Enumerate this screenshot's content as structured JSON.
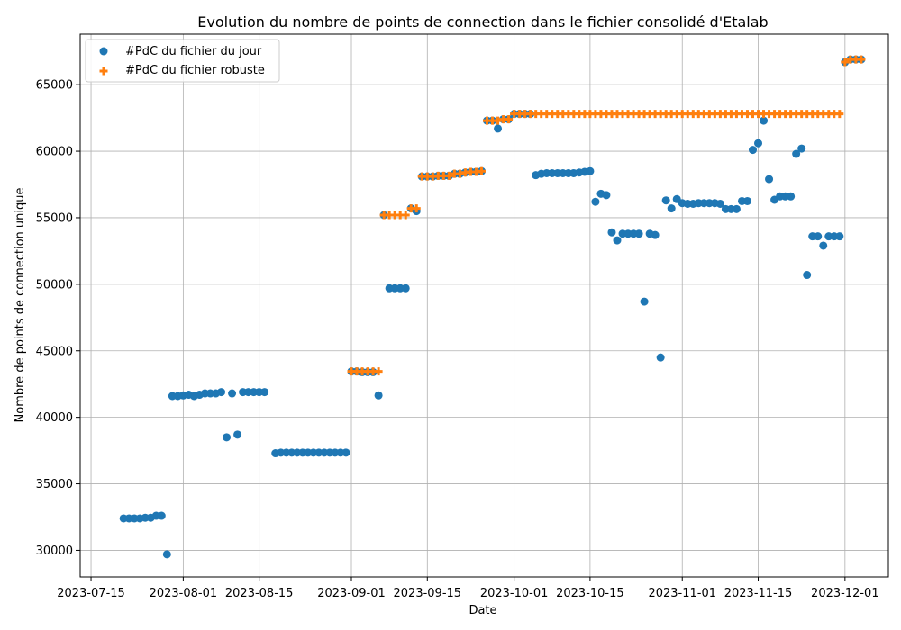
{
  "chart_data": {
    "type": "scatter",
    "title": "Evolution du nombre de points de connection dans le fichier consolidé d'Etalab",
    "xlabel": "Date",
    "ylabel": "Nombre de points de connection unique",
    "x_axis_type": "date",
    "xlim": [
      "2023-07-13",
      "2023-12-09"
    ],
    "ylim": [
      28000,
      68800
    ],
    "xticks": [
      "2023-07-15",
      "2023-08-01",
      "2023-08-15",
      "2023-09-01",
      "2023-09-15",
      "2023-10-01",
      "2023-10-15",
      "2023-11-01",
      "2023-11-15",
      "2023-12-01"
    ],
    "yticks": [
      30000,
      35000,
      40000,
      45000,
      50000,
      55000,
      60000,
      65000
    ],
    "grid": true,
    "legend_position": "top-left",
    "series": [
      {
        "name": "#PdC du fichier du jour",
        "marker": "circle",
        "color": "#1f77b4",
        "points": [
          [
            "2023-07-21",
            32400
          ],
          [
            "2023-07-22",
            32400
          ],
          [
            "2023-07-23",
            32400
          ],
          [
            "2023-07-24",
            32400
          ],
          [
            "2023-07-25",
            32450
          ],
          [
            "2023-07-26",
            32450
          ],
          [
            "2023-07-27",
            32600
          ],
          [
            "2023-07-28",
            32600
          ],
          [
            "2023-07-29",
            29700
          ],
          [
            "2023-07-30",
            41600
          ],
          [
            "2023-07-31",
            41600
          ],
          [
            "2023-08-01",
            41650
          ],
          [
            "2023-08-02",
            41700
          ],
          [
            "2023-08-03",
            41600
          ],
          [
            "2023-08-04",
            41700
          ],
          [
            "2023-08-05",
            41800
          ],
          [
            "2023-08-06",
            41800
          ],
          [
            "2023-08-07",
            41800
          ],
          [
            "2023-08-08",
            41900
          ],
          [
            "2023-08-09",
            38500
          ],
          [
            "2023-08-10",
            41800
          ],
          [
            "2023-08-11",
            38700
          ],
          [
            "2023-08-12",
            41900
          ],
          [
            "2023-08-13",
            41900
          ],
          [
            "2023-08-14",
            41900
          ],
          [
            "2023-08-15",
            41900
          ],
          [
            "2023-08-16",
            41900
          ],
          [
            "2023-08-18",
            37300
          ],
          [
            "2023-08-19",
            37350
          ],
          [
            "2023-08-20",
            37350
          ],
          [
            "2023-08-21",
            37350
          ],
          [
            "2023-08-22",
            37350
          ],
          [
            "2023-08-23",
            37350
          ],
          [
            "2023-08-24",
            37350
          ],
          [
            "2023-08-25",
            37350
          ],
          [
            "2023-08-26",
            37350
          ],
          [
            "2023-08-27",
            37350
          ],
          [
            "2023-08-28",
            37350
          ],
          [
            "2023-08-29",
            37350
          ],
          [
            "2023-08-30",
            37350
          ],
          [
            "2023-08-31",
            37350
          ],
          [
            "2023-09-01",
            43450
          ],
          [
            "2023-09-02",
            43450
          ],
          [
            "2023-09-03",
            43400
          ],
          [
            "2023-09-04",
            43400
          ],
          [
            "2023-09-05",
            43400
          ],
          [
            "2023-09-06",
            41650
          ],
          [
            "2023-09-07",
            55200
          ],
          [
            "2023-09-08",
            49700
          ],
          [
            "2023-09-09",
            49700
          ],
          [
            "2023-09-10",
            49700
          ],
          [
            "2023-09-11",
            49700
          ],
          [
            "2023-09-12",
            55700
          ],
          [
            "2023-09-13",
            55500
          ],
          [
            "2023-09-14",
            58100
          ],
          [
            "2023-09-15",
            58100
          ],
          [
            "2023-09-16",
            58100
          ],
          [
            "2023-09-17",
            58150
          ],
          [
            "2023-09-18",
            58150
          ],
          [
            "2023-09-19",
            58150
          ],
          [
            "2023-09-20",
            58300
          ],
          [
            "2023-09-21",
            58300
          ],
          [
            "2023-09-22",
            58400
          ],
          [
            "2023-09-23",
            58450
          ],
          [
            "2023-09-24",
            58450
          ],
          [
            "2023-09-25",
            58500
          ],
          [
            "2023-09-26",
            62300
          ],
          [
            "2023-09-27",
            62300
          ],
          [
            "2023-09-28",
            61700
          ],
          [
            "2023-09-29",
            62400
          ],
          [
            "2023-09-30",
            62400
          ],
          [
            "2023-10-01",
            62800
          ],
          [
            "2023-10-02",
            62800
          ],
          [
            "2023-10-03",
            62800
          ],
          [
            "2023-10-04",
            62800
          ],
          [
            "2023-10-05",
            58200
          ],
          [
            "2023-10-06",
            58300
          ],
          [
            "2023-10-07",
            58350
          ],
          [
            "2023-10-08",
            58350
          ],
          [
            "2023-10-09",
            58350
          ],
          [
            "2023-10-10",
            58350
          ],
          [
            "2023-10-11",
            58350
          ],
          [
            "2023-10-12",
            58350
          ],
          [
            "2023-10-13",
            58400
          ],
          [
            "2023-10-14",
            58450
          ],
          [
            "2023-10-15",
            58500
          ],
          [
            "2023-10-16",
            56200
          ],
          [
            "2023-10-17",
            56800
          ],
          [
            "2023-10-18",
            56700
          ],
          [
            "2023-10-19",
            53900
          ],
          [
            "2023-10-20",
            53300
          ],
          [
            "2023-10-21",
            53800
          ],
          [
            "2023-10-22",
            53800
          ],
          [
            "2023-10-23",
            53800
          ],
          [
            "2023-10-24",
            53800
          ],
          [
            "2023-10-25",
            48700
          ],
          [
            "2023-10-26",
            53800
          ],
          [
            "2023-10-27",
            53700
          ],
          [
            "2023-10-28",
            44500
          ],
          [
            "2023-10-29",
            56300
          ],
          [
            "2023-10-30",
            55700
          ],
          [
            "2023-10-31",
            56400
          ],
          [
            "2023-11-01",
            56100
          ],
          [
            "2023-11-02",
            56050
          ],
          [
            "2023-11-03",
            56050
          ],
          [
            "2023-11-04",
            56100
          ],
          [
            "2023-11-05",
            56100
          ],
          [
            "2023-11-06",
            56100
          ],
          [
            "2023-11-07",
            56100
          ],
          [
            "2023-11-08",
            56050
          ],
          [
            "2023-11-09",
            55650
          ],
          [
            "2023-11-10",
            55650
          ],
          [
            "2023-11-11",
            55650
          ],
          [
            "2023-11-12",
            56250
          ],
          [
            "2023-11-13",
            56250
          ],
          [
            "2023-11-14",
            60100
          ],
          [
            "2023-11-15",
            60600
          ],
          [
            "2023-11-16",
            62300
          ],
          [
            "2023-11-17",
            57900
          ],
          [
            "2023-11-18",
            56350
          ],
          [
            "2023-11-19",
            56600
          ],
          [
            "2023-11-20",
            56600
          ],
          [
            "2023-11-21",
            56600
          ],
          [
            "2023-11-22",
            59800
          ],
          [
            "2023-11-23",
            60200
          ],
          [
            "2023-11-24",
            50700
          ],
          [
            "2023-11-25",
            53600
          ],
          [
            "2023-11-26",
            53600
          ],
          [
            "2023-11-27",
            52900
          ],
          [
            "2023-11-28",
            53600
          ],
          [
            "2023-11-29",
            53600
          ],
          [
            "2023-11-30",
            53600
          ],
          [
            "2023-12-01",
            66700
          ],
          [
            "2023-12-02",
            66900
          ],
          [
            "2023-12-03",
            66900
          ],
          [
            "2023-12-04",
            66900
          ]
        ]
      },
      {
        "name": "#PdC du fichier robuste",
        "marker": "plus",
        "color": "#ff7f0e",
        "points": [
          [
            "2023-09-01",
            43450
          ],
          [
            "2023-09-02",
            43450
          ],
          [
            "2023-09-03",
            43450
          ],
          [
            "2023-09-04",
            43450
          ],
          [
            "2023-09-05",
            43450
          ],
          [
            "2023-09-06",
            43450
          ],
          [
            "2023-09-07",
            55200
          ],
          [
            "2023-09-08",
            55200
          ],
          [
            "2023-09-09",
            55200
          ],
          [
            "2023-09-10",
            55200
          ],
          [
            "2023-09-11",
            55200
          ],
          [
            "2023-09-12",
            55700
          ],
          [
            "2023-09-13",
            55700
          ],
          [
            "2023-09-14",
            58100
          ],
          [
            "2023-09-15",
            58100
          ],
          [
            "2023-09-16",
            58100
          ],
          [
            "2023-09-17",
            58150
          ],
          [
            "2023-09-18",
            58150
          ],
          [
            "2023-09-19",
            58150
          ],
          [
            "2023-09-20",
            58300
          ],
          [
            "2023-09-21",
            58300
          ],
          [
            "2023-09-22",
            58400
          ],
          [
            "2023-09-23",
            58450
          ],
          [
            "2023-09-24",
            58450
          ],
          [
            "2023-09-25",
            58500
          ],
          [
            "2023-09-26",
            62300
          ],
          [
            "2023-09-27",
            62300
          ],
          [
            "2023-09-28",
            62300
          ],
          [
            "2023-09-29",
            62400
          ],
          [
            "2023-09-30",
            62400
          ],
          [
            "2023-10-01",
            62800
          ],
          [
            "2023-10-02",
            62800
          ],
          [
            "2023-10-03",
            62800
          ],
          [
            "2023-10-04",
            62800
          ],
          [
            "2023-10-05",
            62800
          ],
          [
            "2023-10-06",
            62800
          ],
          [
            "2023-10-07",
            62800
          ],
          [
            "2023-10-08",
            62800
          ],
          [
            "2023-10-09",
            62800
          ],
          [
            "2023-10-10",
            62800
          ],
          [
            "2023-10-11",
            62800
          ],
          [
            "2023-10-12",
            62800
          ],
          [
            "2023-10-13",
            62800
          ],
          [
            "2023-10-14",
            62800
          ],
          [
            "2023-10-15",
            62800
          ],
          [
            "2023-10-16",
            62800
          ],
          [
            "2023-10-17",
            62800
          ],
          [
            "2023-10-18",
            62800
          ],
          [
            "2023-10-19",
            62800
          ],
          [
            "2023-10-20",
            62800
          ],
          [
            "2023-10-21",
            62800
          ],
          [
            "2023-10-22",
            62800
          ],
          [
            "2023-10-23",
            62800
          ],
          [
            "2023-10-24",
            62800
          ],
          [
            "2023-10-25",
            62800
          ],
          [
            "2023-10-26",
            62800
          ],
          [
            "2023-10-27",
            62800
          ],
          [
            "2023-10-28",
            62800
          ],
          [
            "2023-10-29",
            62800
          ],
          [
            "2023-10-30",
            62800
          ],
          [
            "2023-10-31",
            62800
          ],
          [
            "2023-11-01",
            62800
          ],
          [
            "2023-11-02",
            62800
          ],
          [
            "2023-11-03",
            62800
          ],
          [
            "2023-11-04",
            62800
          ],
          [
            "2023-11-05",
            62800
          ],
          [
            "2023-11-06",
            62800
          ],
          [
            "2023-11-07",
            62800
          ],
          [
            "2023-11-08",
            62800
          ],
          [
            "2023-11-09",
            62800
          ],
          [
            "2023-11-10",
            62800
          ],
          [
            "2023-11-11",
            62800
          ],
          [
            "2023-11-12",
            62800
          ],
          [
            "2023-11-13",
            62800
          ],
          [
            "2023-11-14",
            62800
          ],
          [
            "2023-11-15",
            62800
          ],
          [
            "2023-11-16",
            62800
          ],
          [
            "2023-11-17",
            62800
          ],
          [
            "2023-11-18",
            62800
          ],
          [
            "2023-11-19",
            62800
          ],
          [
            "2023-11-20",
            62800
          ],
          [
            "2023-11-21",
            62800
          ],
          [
            "2023-11-22",
            62800
          ],
          [
            "2023-11-23",
            62800
          ],
          [
            "2023-11-24",
            62800
          ],
          [
            "2023-11-25",
            62800
          ],
          [
            "2023-11-26",
            62800
          ],
          [
            "2023-11-27",
            62800
          ],
          [
            "2023-11-28",
            62800
          ],
          [
            "2023-11-29",
            62800
          ],
          [
            "2023-11-30",
            62800
          ],
          [
            "2023-12-01",
            66700
          ],
          [
            "2023-12-02",
            66900
          ],
          [
            "2023-12-03",
            66900
          ],
          [
            "2023-12-04",
            66900
          ]
        ]
      }
    ]
  }
}
